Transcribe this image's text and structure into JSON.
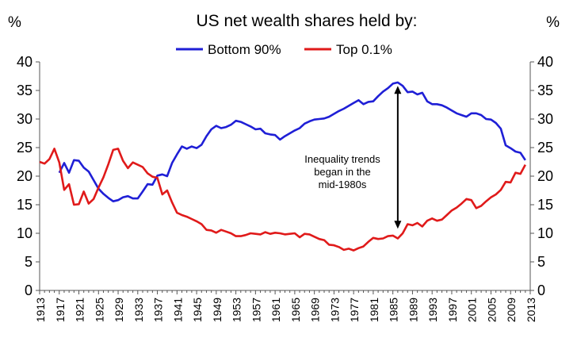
{
  "chart_data": {
    "type": "line",
    "title": "US net wealth shares held by:",
    "ylabel_left": "%",
    "ylabel_right": "%",
    "ylim": [
      0,
      40
    ],
    "yticks": [
      0,
      5,
      10,
      15,
      20,
      25,
      30,
      35,
      40
    ],
    "xlim": [
      1913,
      2013
    ],
    "xticks": [
      1913,
      1917,
      1921,
      1925,
      1929,
      1933,
      1937,
      1941,
      1945,
      1949,
      1953,
      1957,
      1961,
      1965,
      1969,
      1973,
      1977,
      1981,
      1985,
      1989,
      1993,
      1997,
      2001,
      2005,
      2009,
      2013
    ],
    "legend_position": "top-center",
    "grid": false,
    "annotation": {
      "lines": [
        "Inequality trends",
        "began in the",
        "mid-1980s"
      ],
      "arrow_x": 1986,
      "arrow_from": 35.8,
      "arrow_to": 10.8
    },
    "series": [
      {
        "name": "Bottom 90%",
        "color": "#1f1fd6",
        "points": [
          [
            1917,
            20.6
          ],
          [
            1918,
            22.3
          ],
          [
            1919,
            20.6
          ],
          [
            1920,
            22.8
          ],
          [
            1921,
            22.7
          ],
          [
            1922,
            21.5
          ],
          [
            1923,
            20.8
          ],
          [
            1924,
            19.3
          ],
          [
            1925,
            17.8
          ],
          [
            1926,
            16.9
          ],
          [
            1927,
            16.2
          ],
          [
            1928,
            15.6
          ],
          [
            1929,
            15.8
          ],
          [
            1930,
            16.3
          ],
          [
            1931,
            16.5
          ],
          [
            1932,
            16.1
          ],
          [
            1933,
            16.1
          ],
          [
            1934,
            17.3
          ],
          [
            1935,
            18.6
          ],
          [
            1936,
            18.5
          ],
          [
            1937,
            20.1
          ],
          [
            1938,
            20.3
          ],
          [
            1939,
            20.0
          ],
          [
            1940,
            22.3
          ],
          [
            1941,
            23.8
          ],
          [
            1942,
            25.2
          ],
          [
            1943,
            24.8
          ],
          [
            1944,
            25.2
          ],
          [
            1945,
            24.9
          ],
          [
            1946,
            25.5
          ],
          [
            1947,
            27.0
          ],
          [
            1948,
            28.2
          ],
          [
            1949,
            28.8
          ],
          [
            1950,
            28.4
          ],
          [
            1951,
            28.6
          ],
          [
            1952,
            29.0
          ],
          [
            1953,
            29.7
          ],
          [
            1954,
            29.5
          ],
          [
            1955,
            29.1
          ],
          [
            1956,
            28.7
          ],
          [
            1957,
            28.2
          ],
          [
            1958,
            28.3
          ],
          [
            1959,
            27.5
          ],
          [
            1960,
            27.3
          ],
          [
            1961,
            27.2
          ],
          [
            1962,
            26.4
          ],
          [
            1963,
            27.0
          ],
          [
            1964,
            27.5
          ],
          [
            1965,
            28.0
          ],
          [
            1966,
            28.4
          ],
          [
            1967,
            29.2
          ],
          [
            1968,
            29.6
          ],
          [
            1969,
            29.9
          ],
          [
            1970,
            30.0
          ],
          [
            1971,
            30.1
          ],
          [
            1972,
            30.4
          ],
          [
            1973,
            30.9
          ],
          [
            1974,
            31.4
          ],
          [
            1975,
            31.8
          ],
          [
            1976,
            32.3
          ],
          [
            1977,
            32.8
          ],
          [
            1978,
            33.3
          ],
          [
            1979,
            32.6
          ],
          [
            1980,
            33.0
          ],
          [
            1981,
            33.1
          ],
          [
            1982,
            34.0
          ],
          [
            1983,
            34.8
          ],
          [
            1984,
            35.4
          ],
          [
            1985,
            36.2
          ],
          [
            1986,
            36.4
          ],
          [
            1987,
            35.8
          ],
          [
            1988,
            34.7
          ],
          [
            1989,
            34.8
          ],
          [
            1990,
            34.3
          ],
          [
            1991,
            34.6
          ],
          [
            1992,
            33.1
          ],
          [
            1993,
            32.6
          ],
          [
            1994,
            32.6
          ],
          [
            1995,
            32.4
          ],
          [
            1996,
            32.0
          ],
          [
            1997,
            31.5
          ],
          [
            1998,
            31.0
          ],
          [
            1999,
            30.7
          ],
          [
            2000,
            30.4
          ],
          [
            2001,
            31.0
          ],
          [
            2002,
            31.0
          ],
          [
            2003,
            30.7
          ],
          [
            2004,
            30.0
          ],
          [
            2005,
            29.9
          ],
          [
            2006,
            29.3
          ],
          [
            2007,
            28.3
          ],
          [
            2008,
            25.4
          ],
          [
            2009,
            24.9
          ],
          [
            2010,
            24.3
          ],
          [
            2011,
            24.1
          ],
          [
            2012,
            22.8
          ]
        ]
      },
      {
        "name": "Top 0.1%",
        "color": "#e01a1a",
        "points": [
          [
            1913,
            22.5
          ],
          [
            1914,
            22.2
          ],
          [
            1915,
            23.0
          ],
          [
            1916,
            24.8
          ],
          [
            1917,
            22.4
          ],
          [
            1918,
            17.6
          ],
          [
            1919,
            18.6
          ],
          [
            1920,
            15.0
          ],
          [
            1921,
            15.1
          ],
          [
            1922,
            17.3
          ],
          [
            1923,
            15.2
          ],
          [
            1924,
            16.0
          ],
          [
            1925,
            18.0
          ],
          [
            1926,
            19.8
          ],
          [
            1927,
            22.1
          ],
          [
            1928,
            24.6
          ],
          [
            1929,
            24.8
          ],
          [
            1930,
            22.7
          ],
          [
            1931,
            21.4
          ],
          [
            1932,
            22.4
          ],
          [
            1933,
            22.0
          ],
          [
            1934,
            21.6
          ],
          [
            1935,
            20.5
          ],
          [
            1936,
            19.9
          ],
          [
            1937,
            19.7
          ],
          [
            1938,
            16.8
          ],
          [
            1939,
            17.5
          ],
          [
            1940,
            15.4
          ],
          [
            1941,
            13.6
          ],
          [
            1942,
            13.2
          ],
          [
            1943,
            12.9
          ],
          [
            1944,
            12.5
          ],
          [
            1945,
            12.1
          ],
          [
            1946,
            11.6
          ],
          [
            1947,
            10.6
          ],
          [
            1948,
            10.5
          ],
          [
            1949,
            10.1
          ],
          [
            1950,
            10.6
          ],
          [
            1951,
            10.3
          ],
          [
            1952,
            10.0
          ],
          [
            1953,
            9.5
          ],
          [
            1954,
            9.5
          ],
          [
            1955,
            9.7
          ],
          [
            1956,
            10.0
          ],
          [
            1957,
            9.9
          ],
          [
            1958,
            9.8
          ],
          [
            1959,
            10.2
          ],
          [
            1960,
            9.9
          ],
          [
            1961,
            10.1
          ],
          [
            1962,
            10.0
          ],
          [
            1963,
            9.8
          ],
          [
            1964,
            9.9
          ],
          [
            1965,
            10.0
          ],
          [
            1966,
            9.3
          ],
          [
            1967,
            9.9
          ],
          [
            1968,
            9.8
          ],
          [
            1969,
            9.4
          ],
          [
            1970,
            9.0
          ],
          [
            1971,
            8.8
          ],
          [
            1972,
            8.0
          ],
          [
            1973,
            7.9
          ],
          [
            1974,
            7.6
          ],
          [
            1975,
            7.1
          ],
          [
            1976,
            7.3
          ],
          [
            1977,
            7.0
          ],
          [
            1978,
            7.4
          ],
          [
            1979,
            7.7
          ],
          [
            1980,
            8.5
          ],
          [
            1981,
            9.2
          ],
          [
            1982,
            9.0
          ],
          [
            1983,
            9.1
          ],
          [
            1984,
            9.5
          ],
          [
            1985,
            9.6
          ],
          [
            1986,
            9.1
          ],
          [
            1987,
            10.0
          ],
          [
            1988,
            11.6
          ],
          [
            1989,
            11.4
          ],
          [
            1990,
            11.8
          ],
          [
            1991,
            11.2
          ],
          [
            1992,
            12.2
          ],
          [
            1993,
            12.6
          ],
          [
            1994,
            12.2
          ],
          [
            1995,
            12.4
          ],
          [
            1996,
            13.2
          ],
          [
            1997,
            14.0
          ],
          [
            1998,
            14.5
          ],
          [
            1999,
            15.2
          ],
          [
            2000,
            16.0
          ],
          [
            2001,
            15.8
          ],
          [
            2002,
            14.4
          ],
          [
            2003,
            14.8
          ],
          [
            2004,
            15.6
          ],
          [
            2005,
            16.3
          ],
          [
            2006,
            16.8
          ],
          [
            2007,
            17.6
          ],
          [
            2008,
            19.0
          ],
          [
            2009,
            18.9
          ],
          [
            2010,
            20.6
          ],
          [
            2011,
            20.4
          ],
          [
            2012,
            22.0
          ]
        ]
      }
    ]
  }
}
